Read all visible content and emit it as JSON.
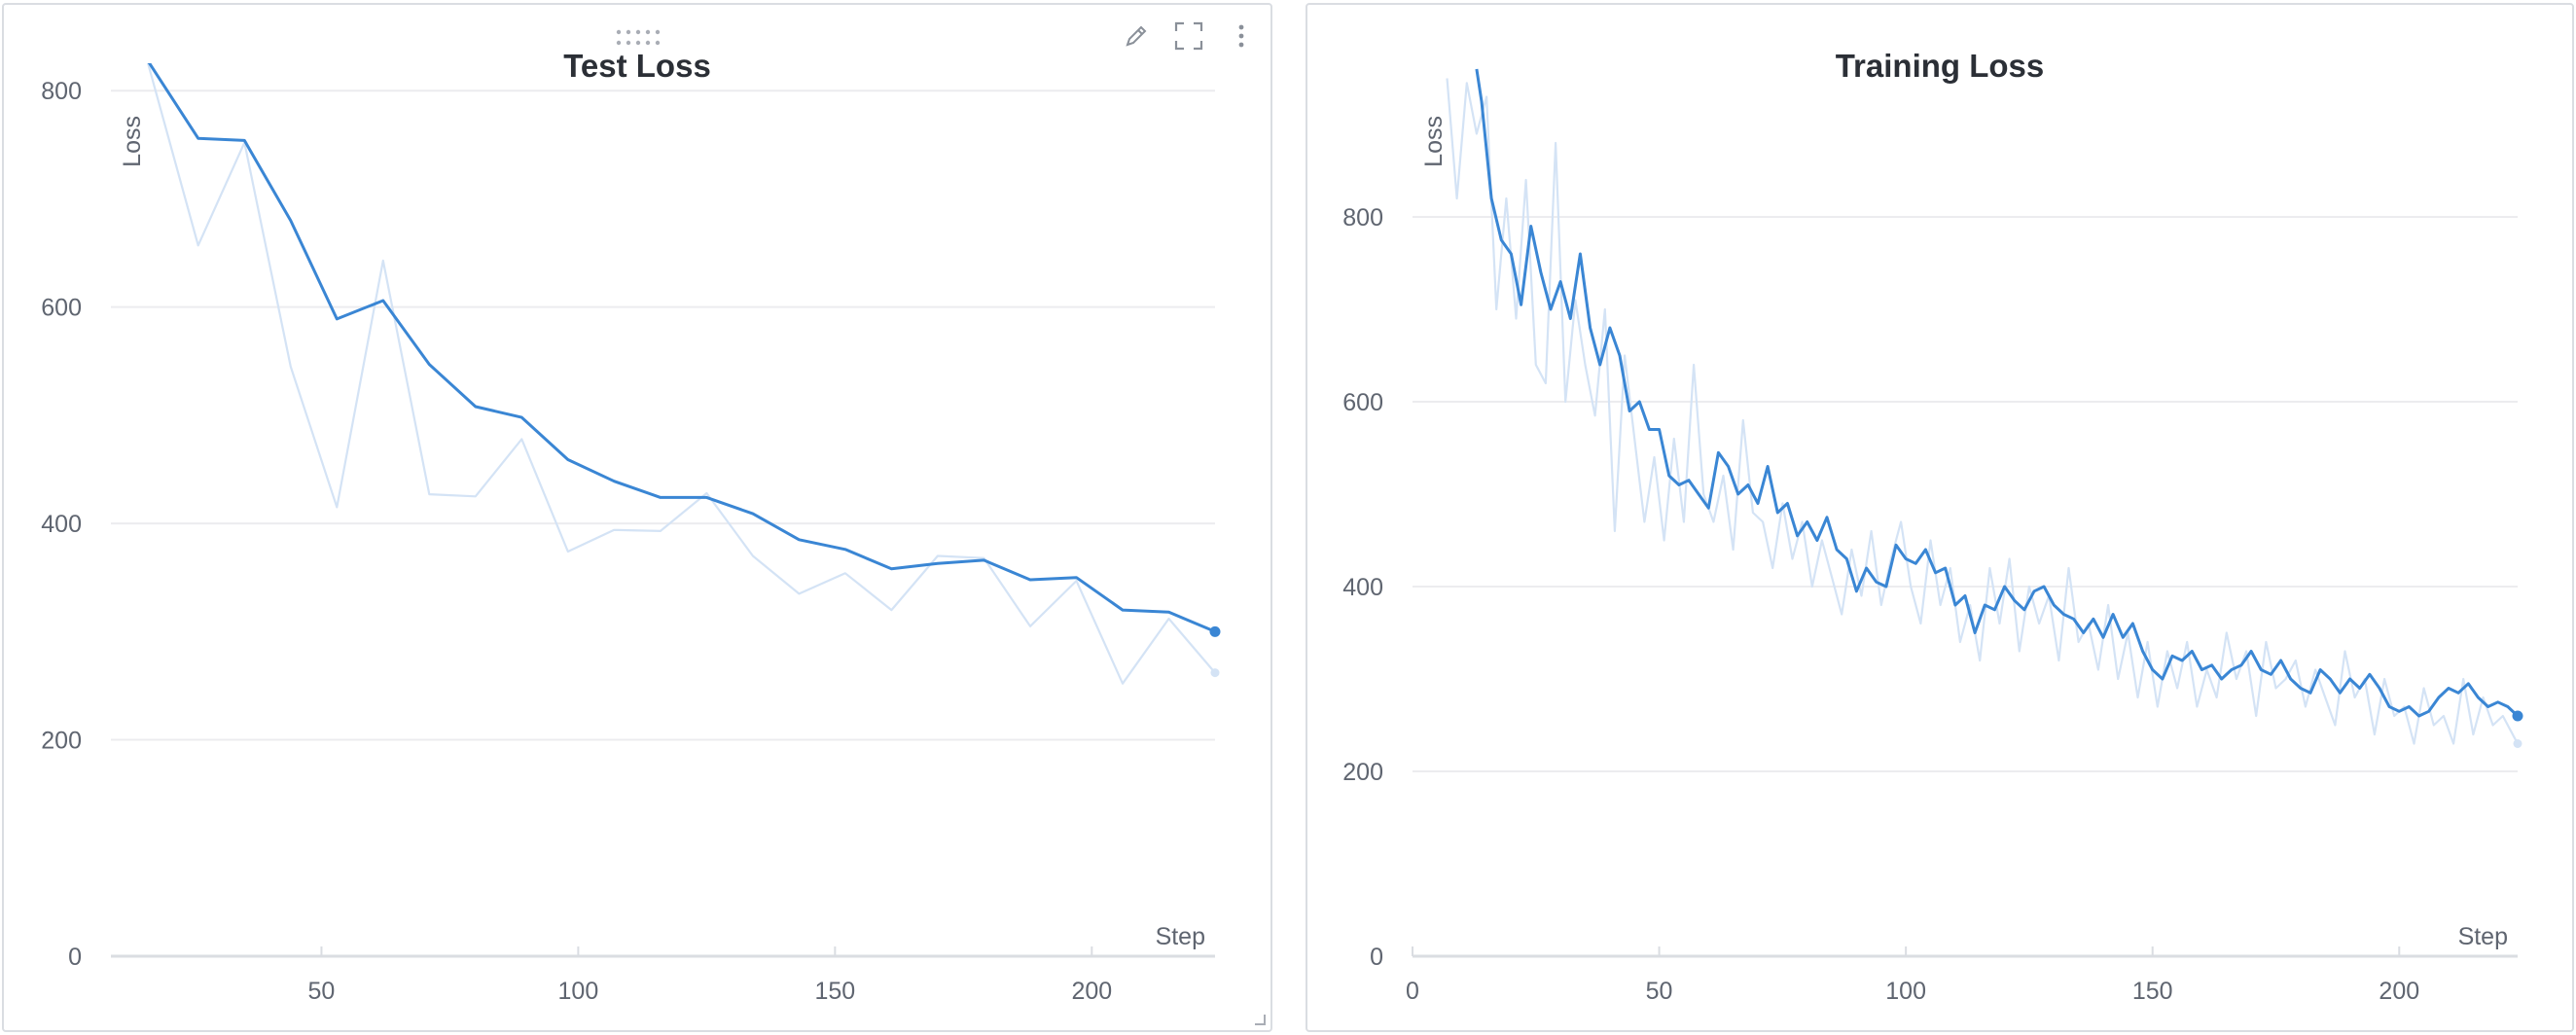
{
  "colors": {
    "line": "#3a86d4",
    "raw_line": "#d4e3f5",
    "grid": "#ececef",
    "axis": "#dadde2",
    "text": "#5f6570"
  },
  "icons": {
    "edit": "pencil-icon",
    "fullscreen": "fullscreen-icon",
    "menu": "more-vertical-icon",
    "drag": "drag-handle-icon",
    "resize": "resize-corner-icon"
  },
  "chart_data": [
    {
      "type": "line",
      "title": "Test Loss",
      "xlabel": "Step",
      "ylabel": "Loss",
      "xlim": [
        9,
        224
      ],
      "ylim": [
        0,
        820
      ],
      "xticks": [
        50,
        100,
        150,
        200
      ],
      "yticks": [
        0,
        200,
        400,
        600,
        800
      ],
      "grid": true,
      "series": [
        {
          "style": "smoothed",
          "x": [
            16,
            26,
            35,
            44,
            53,
            62,
            71,
            80,
            89,
            98,
            107,
            116,
            125,
            134,
            143,
            152,
            161,
            170,
            179,
            188,
            197,
            206,
            215,
            224
          ],
          "y": [
            829,
            756,
            754,
            680,
            589,
            606,
            547,
            508,
            498,
            459,
            439,
            424,
            424,
            409,
            385,
            376,
            358,
            363,
            366,
            348,
            350,
            320,
            318,
            300
          ]
        },
        {
          "style": "raw",
          "x": [
            16,
            26,
            35,
            44,
            53,
            62,
            71,
            80,
            89,
            98,
            107,
            116,
            125,
            134,
            143,
            152,
            161,
            170,
            179,
            188,
            197,
            206,
            215,
            224
          ],
          "y": [
            829,
            657,
            752,
            545,
            415,
            643,
            427,
            425,
            478,
            374,
            394,
            393,
            428,
            370,
            335,
            354,
            320,
            370,
            368,
            305,
            347,
            252,
            312,
            262
          ]
        }
      ]
    },
    {
      "type": "line",
      "title": "Training Loss",
      "xlabel": "Step",
      "ylabel": "Loss",
      "xlim": [
        0,
        224
      ],
      "ylim": [
        0,
        960
      ],
      "xticks": [
        0,
        50,
        100,
        150,
        200
      ],
      "yticks": [
        0,
        200,
        400,
        600,
        800
      ],
      "grid": true,
      "series": [
        {
          "style": "smoothed",
          "x": [
            13,
            14,
            16,
            18,
            20,
            22,
            24,
            26,
            28,
            30,
            32,
            34,
            36,
            38,
            40,
            42,
            44,
            46,
            48,
            50,
            52,
            54,
            56,
            58,
            60,
            62,
            64,
            66,
            68,
            70,
            72,
            74,
            76,
            78,
            80,
            82,
            84,
            86,
            88,
            90,
            92,
            94,
            96,
            98,
            100,
            102,
            104,
            106,
            108,
            110,
            112,
            114,
            116,
            118,
            120,
            122,
            124,
            126,
            128,
            130,
            132,
            134,
            136,
            138,
            140,
            142,
            144,
            146,
            148,
            150,
            152,
            154,
            156,
            158,
            160,
            162,
            164,
            166,
            168,
            170,
            172,
            174,
            176,
            178,
            180,
            182,
            184,
            186,
            188,
            190,
            192,
            194,
            196,
            198,
            200,
            202,
            204,
            206,
            208,
            210,
            212,
            214,
            216,
            218,
            220,
            222,
            224
          ],
          "y": [
            960,
            925,
            820,
            775,
            760,
            705,
            790,
            740,
            700,
            730,
            690,
            760,
            680,
            640,
            680,
            650,
            590,
            600,
            570,
            570,
            520,
            510,
            515,
            500,
            485,
            545,
            530,
            500,
            510,
            490,
            530,
            480,
            490,
            455,
            470,
            450,
            475,
            440,
            430,
            395,
            420,
            405,
            400,
            445,
            430,
            425,
            440,
            415,
            420,
            380,
            390,
            350,
            380,
            375,
            400,
            385,
            375,
            395,
            400,
            380,
            370,
            365,
            350,
            365,
            345,
            370,
            345,
            360,
            330,
            310,
            300,
            325,
            320,
            330,
            310,
            315,
            300,
            310,
            315,
            330,
            310,
            305,
            320,
            300,
            290,
            285,
            310,
            300,
            285,
            300,
            290,
            305,
            290,
            270,
            265,
            270,
            260,
            265,
            280,
            290,
            285,
            295,
            280,
            270,
            275,
            270,
            260
          ]
        },
        {
          "style": "raw",
          "x": [
            7,
            9,
            11,
            13,
            15,
            17,
            19,
            21,
            23,
            25,
            27,
            29,
            31,
            33,
            35,
            37,
            39,
            41,
            43,
            45,
            47,
            49,
            51,
            53,
            55,
            57,
            59,
            61,
            63,
            65,
            67,
            69,
            71,
            73,
            75,
            77,
            79,
            81,
            83,
            85,
            87,
            89,
            91,
            93,
            95,
            97,
            99,
            101,
            103,
            105,
            107,
            109,
            111,
            113,
            115,
            117,
            119,
            121,
            123,
            125,
            127,
            129,
            131,
            133,
            135,
            137,
            139,
            141,
            143,
            145,
            147,
            149,
            151,
            153,
            155,
            157,
            159,
            161,
            163,
            165,
            167,
            169,
            171,
            173,
            175,
            177,
            179,
            181,
            183,
            185,
            187,
            189,
            191,
            193,
            195,
            197,
            199,
            201,
            203,
            205,
            207,
            209,
            211,
            213,
            215,
            217,
            219,
            221,
            224
          ],
          "y": [
            950,
            820,
            945,
            890,
            930,
            700,
            820,
            690,
            840,
            640,
            620,
            880,
            600,
            710,
            640,
            585,
            700,
            460,
            650,
            560,
            470,
            540,
            450,
            560,
            470,
            640,
            500,
            470,
            520,
            440,
            580,
            480,
            470,
            420,
            490,
            430,
            470,
            400,
            450,
            410,
            370,
            440,
            390,
            460,
            380,
            430,
            470,
            400,
            360,
            450,
            380,
            420,
            340,
            380,
            320,
            420,
            360,
            430,
            330,
            400,
            360,
            390,
            320,
            420,
            340,
            360,
            310,
            380,
            300,
            350,
            280,
            340,
            270,
            330,
            290,
            340,
            270,
            310,
            280,
            350,
            300,
            330,
            260,
            340,
            290,
            300,
            320,
            270,
            310,
            280,
            250,
            330,
            280,
            300,
            240,
            300,
            260,
            270,
            230,
            290,
            250,
            260,
            230,
            300,
            240,
            280,
            250,
            260,
            230
          ]
        }
      ]
    }
  ]
}
